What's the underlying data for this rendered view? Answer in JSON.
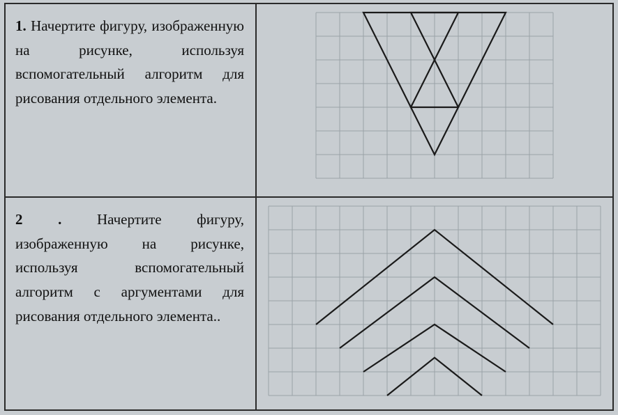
{
  "tasks": [
    {
      "number": "1.",
      "text": "Начертите фигуру, изображенную на рисунке, используя вспомогательный алгоритм для рисования отдельного элемента.",
      "figure": {
        "type": "grid-drawing",
        "grid": {
          "cols": 10,
          "rows": 7,
          "cell": 34,
          "color": "#9aa2a8"
        },
        "stroke_color": "#1a1a1a",
        "stroke_width": 2.2,
        "shapes": [
          {
            "points": [
              [
                2,
                0
              ],
              [
                6,
                0
              ],
              [
                4,
                4
              ]
            ],
            "closed": true
          },
          {
            "points": [
              [
                4,
                0
              ],
              [
                8,
                0
              ],
              [
                6,
                4
              ]
            ],
            "closed": true
          },
          {
            "points": [
              [
                4,
                4
              ],
              [
                6,
                4
              ],
              [
                5,
                6
              ]
            ],
            "closed": true
          }
        ]
      }
    },
    {
      "number": "2 .",
      "text": "Начертите фигуру, изображенную на рисунке, используя вспомогательный алгоритм с аргументами для рисования отдельного элемента..",
      "figure": {
        "type": "grid-drawing",
        "grid": {
          "cols": 14,
          "rows": 8,
          "cell": 34,
          "color": "#9aa2a8"
        },
        "stroke_color": "#1a1a1a",
        "stroke_width": 2.2,
        "shapes": [
          {
            "points": [
              [
                2,
                5
              ],
              [
                7,
                1
              ],
              [
                12,
                5
              ]
            ],
            "closed": false
          },
          {
            "points": [
              [
                3,
                6
              ],
              [
                7,
                3
              ],
              [
                11,
                6
              ]
            ],
            "closed": false
          },
          {
            "points": [
              [
                4,
                7
              ],
              [
                7,
                5
              ],
              [
                10,
                7
              ]
            ],
            "closed": false
          },
          {
            "points": [
              [
                5,
                8
              ],
              [
                7,
                6.4
              ],
              [
                9,
                8
              ]
            ],
            "closed": false
          }
        ]
      }
    }
  ],
  "layout": {
    "background": "#c8cdd1",
    "border_color": "#2a2a2a",
    "font_family": "Georgia, Times New Roman, serif",
    "font_size_pt": 16,
    "text_color": "#111"
  }
}
